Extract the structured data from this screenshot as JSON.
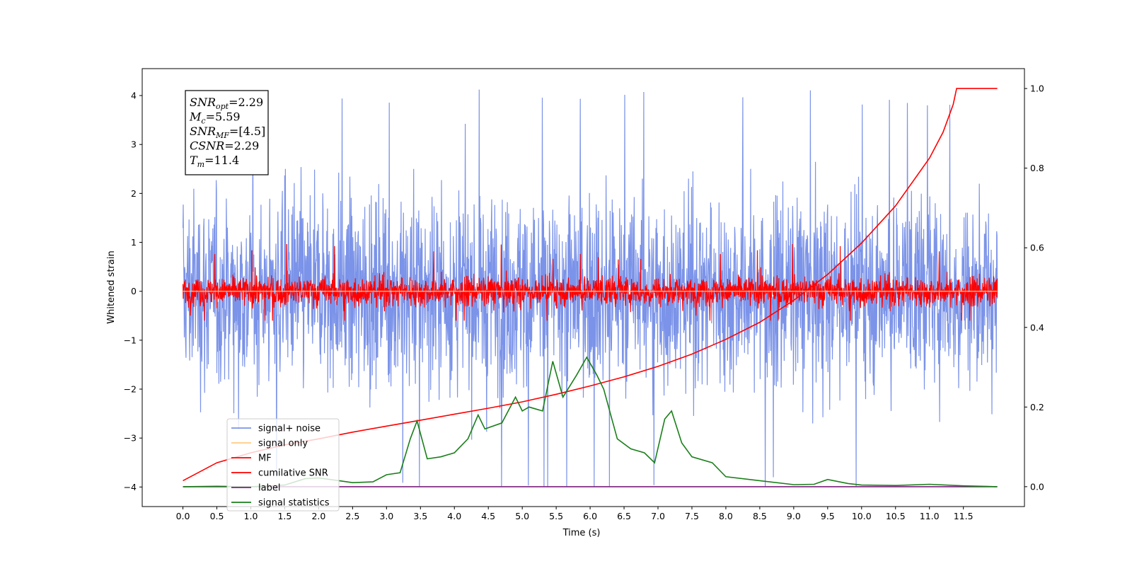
{
  "chart_data": {
    "type": "line",
    "title": "",
    "xlabel": "Time (s)",
    "ylabel": "Whitened strain",
    "y2label": "",
    "xlim": [
      -0.6,
      12.4
    ],
    "ylim": [
      -4.4,
      4.55
    ],
    "y2lim": [
      -0.05,
      1.05
    ],
    "xticks": [
      0.0,
      0.5,
      1.0,
      1.5,
      2.0,
      2.5,
      3.0,
      3.5,
      4.0,
      4.5,
      5.0,
      5.5,
      6.0,
      6.5,
      7.0,
      7.5,
      8.0,
      8.5,
      9.0,
      9.5,
      10.0,
      10.5,
      11.0,
      11.5
    ],
    "xtick_labels": [
      "0.0",
      "0.5",
      "1.0",
      "1.5",
      "2.0",
      "2.5",
      "3.0",
      "3.5",
      "4.0",
      "4.5",
      "5.0",
      "5.5",
      "6.0",
      "6.5",
      "7.0",
      "7.5",
      "8.0",
      "8.5",
      "9.0",
      "9.5",
      "10.0",
      "10.5",
      "11.0",
      "11.5"
    ],
    "yticks": [
      -4,
      -3,
      -2,
      -1,
      0,
      1,
      2,
      3,
      4
    ],
    "ytick_labels": [
      "−4",
      "−3",
      "−2",
      "−1",
      "0",
      "1",
      "2",
      "3",
      "4"
    ],
    "y2ticks": [
      0.0,
      0.2,
      0.4,
      0.6,
      0.8,
      1.0
    ],
    "y2tick_labels": [
      "0.0",
      "0.2",
      "0.4",
      "0.6",
      "0.8",
      "1.0"
    ],
    "grid": false,
    "legend_position": "lower-left",
    "annotation": {
      "lines": [
        {
          "main": "SNR",
          "sub": "opt",
          "value": "=2.29"
        },
        {
          "main": "M",
          "sub": "c",
          "value": "=5.59"
        },
        {
          "main": "SNR",
          "sub": "MF",
          "value": "=[4.5]"
        },
        {
          "main": "CSNR",
          "sub": "",
          "value": "=2.29"
        },
        {
          "main": "T",
          "sub": "m",
          "value": "=11.4"
        }
      ]
    },
    "series": [
      {
        "name": "signal+ noise",
        "color": "#7b93e8",
        "kind": "noise",
        "axis": "left",
        "x_range": [
          0.0,
          12.0
        ],
        "typical_range": [
          -2.5,
          2.5
        ],
        "extremes": [
          -4.0,
          4.15
        ]
      },
      {
        "name": "signal only",
        "color": "#ffcc80",
        "kind": "flat",
        "axis": "left",
        "x": [
          0.0,
          12.0
        ],
        "y": [
          0.0,
          0.0
        ]
      },
      {
        "name": "MF",
        "color": "#ff0000",
        "kind": "noise",
        "axis": "left",
        "x_range": [
          0.0,
          12.0
        ],
        "typical_range": [
          -0.4,
          0.4
        ],
        "extremes": [
          -0.6,
          1.0
        ]
      },
      {
        "name": "cumilative SNR",
        "color": "#ff0000",
        "kind": "line",
        "axis": "right",
        "x": [
          0.0,
          0.5,
          1.0,
          1.5,
          2.0,
          2.5,
          3.0,
          3.5,
          4.0,
          4.5,
          5.0,
          5.5,
          6.0,
          6.5,
          7.0,
          7.5,
          8.0,
          8.5,
          9.0,
          9.5,
          10.0,
          10.5,
          11.0,
          11.2,
          11.35,
          11.4,
          12.0
        ],
        "y": [
          0.015,
          0.06,
          0.085,
          0.105,
          0.12,
          0.137,
          0.152,
          0.167,
          0.182,
          0.197,
          0.213,
          0.232,
          0.253,
          0.276,
          0.302,
          0.333,
          0.37,
          0.413,
          0.468,
          0.533,
          0.612,
          0.705,
          0.825,
          0.89,
          0.96,
          1.0,
          1.0
        ]
      },
      {
        "name": "label",
        "color": "#7b1f7b",
        "kind": "line",
        "axis": "right",
        "x": [
          0.0,
          12.0
        ],
        "y": [
          0.0,
          0.0
        ]
      },
      {
        "name": "signal statistics",
        "color": "#1a7f1a",
        "kind": "line",
        "axis": "right",
        "x": [
          0.0,
          0.5,
          1.0,
          1.5,
          1.8,
          2.0,
          2.3,
          2.5,
          2.8,
          3.0,
          3.2,
          3.35,
          3.45,
          3.6,
          3.8,
          4.0,
          4.2,
          4.35,
          4.45,
          4.7,
          4.9,
          5.0,
          5.1,
          5.3,
          5.45,
          5.6,
          5.8,
          5.95,
          6.1,
          6.2,
          6.4,
          6.6,
          6.8,
          6.95,
          7.1,
          7.2,
          7.35,
          7.5,
          7.8,
          8.0,
          8.5,
          9.0,
          9.3,
          9.5,
          9.8,
          10.0,
          10.5,
          11.0,
          11.5,
          12.0
        ],
        "y": [
          0.0,
          0.001,
          0.0,
          0.004,
          0.02,
          0.022,
          0.015,
          0.01,
          0.012,
          0.03,
          0.035,
          0.12,
          0.165,
          0.07,
          0.075,
          0.085,
          0.12,
          0.18,
          0.145,
          0.16,
          0.225,
          0.19,
          0.2,
          0.19,
          0.315,
          0.225,
          0.28,
          0.325,
          0.28,
          0.245,
          0.12,
          0.095,
          0.085,
          0.06,
          0.17,
          0.19,
          0.11,
          0.075,
          0.06,
          0.025,
          0.015,
          0.005,
          0.006,
          0.018,
          0.008,
          0.004,
          0.003,
          0.006,
          0.002,
          0.0
        ]
      }
    ]
  }
}
